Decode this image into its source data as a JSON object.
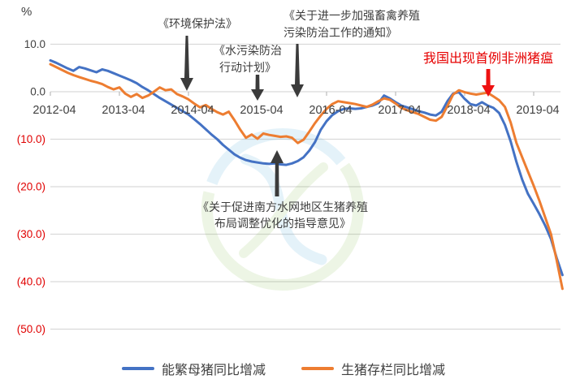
{
  "chart_data": {
    "type": "line",
    "title": "",
    "unit_label": "%",
    "grid": true,
    "legend_position": "bottom",
    "colors": {
      "grid": "#d9d9d9",
      "axis_text": "#404040",
      "negative_tick": "#e00000",
      "arrow": "#3b3b3b",
      "asf_arrow": "#ee1111"
    },
    "x_axis": {
      "tick_labels": [
        "2012-04",
        "2013-04",
        "2014-04",
        "2015-04",
        "2016-04",
        "2017-04",
        "2018-04",
        "2019-04"
      ]
    },
    "y_axis": {
      "range": [
        -50,
        10
      ],
      "ticks": [
        {
          "value": 10,
          "label": "10.0"
        },
        {
          "value": 0,
          "label": "0.0"
        },
        {
          "value": -10,
          "label": "(10.0)"
        },
        {
          "value": -20,
          "label": "(20.0)"
        },
        {
          "value": -30,
          "label": "(30.0)"
        },
        {
          "value": -40,
          "label": "(40.0)"
        },
        {
          "value": -50,
          "label": "(50.0)"
        }
      ]
    },
    "x": [
      "2012-04",
      "2012-05",
      "2012-06",
      "2012-07",
      "2012-08",
      "2012-09",
      "2012-10",
      "2012-11",
      "2012-12",
      "2013-01",
      "2013-02",
      "2013-03",
      "2013-04",
      "2013-05",
      "2013-06",
      "2013-07",
      "2013-08",
      "2013-09",
      "2013-10",
      "2013-11",
      "2013-12",
      "2014-01",
      "2014-02",
      "2014-03",
      "2014-04",
      "2014-05",
      "2014-06",
      "2014-07",
      "2014-08",
      "2014-09",
      "2014-10",
      "2014-11",
      "2014-12",
      "2015-01",
      "2015-02",
      "2015-03",
      "2015-04",
      "2015-05",
      "2015-06",
      "2015-07",
      "2015-08",
      "2015-09",
      "2015-10",
      "2015-11",
      "2015-12",
      "2016-01",
      "2016-02",
      "2016-03",
      "2016-04",
      "2016-05",
      "2016-06",
      "2016-07",
      "2016-08",
      "2016-09",
      "2016-10",
      "2016-11",
      "2016-12",
      "2017-01",
      "2017-02",
      "2017-03",
      "2017-04",
      "2017-05",
      "2017-06",
      "2017-07",
      "2017-08",
      "2017-09",
      "2017-10",
      "2017-11",
      "2017-12",
      "2018-01",
      "2018-02",
      "2018-03",
      "2018-04",
      "2018-05",
      "2018-06",
      "2018-07",
      "2018-08",
      "2018-09",
      "2018-10",
      "2018-11",
      "2018-12",
      "2019-01",
      "2019-02",
      "2019-03",
      "2019-04",
      "2019-05",
      "2019-06",
      "2019-07",
      "2019-08",
      "2019-09"
    ],
    "series": [
      {
        "name": "能繁母猪同比增减",
        "color": "#4472c4",
        "values": [
          6.6,
          6.1,
          5.5,
          4.9,
          4.4,
          5.2,
          4.9,
          4.5,
          4.1,
          4.7,
          4.4,
          3.9,
          3.4,
          2.9,
          2.4,
          1.8,
          1.0,
          0.3,
          -0.5,
          -1.3,
          -2.0,
          -2.7,
          -3.4,
          -4.1,
          -4.8,
          -5.8,
          -6.8,
          -7.9,
          -9.0,
          -10.0,
          -11.2,
          -12.2,
          -13.2,
          -13.9,
          -14.4,
          -14.7,
          -14.9,
          -15.1,
          -15.2,
          -15.1,
          -15.3,
          -15.4,
          -15.1,
          -14.6,
          -13.8,
          -12.4,
          -10.6,
          -8.0,
          -6.2,
          -4.9,
          -4.1,
          -3.6,
          -3.5,
          -3.6,
          -3.5,
          -3.2,
          -2.9,
          -2.4,
          -0.8,
          -1.4,
          -2.2,
          -2.9,
          -3.3,
          -3.7,
          -4.1,
          -4.4,
          -4.8,
          -5.0,
          -4.2,
          -2.0,
          -0.4,
          -0.1,
          -1.5,
          -2.6,
          -2.9,
          -2.2,
          -2.9,
          -3.4,
          -4.5,
          -7.0,
          -10.5,
          -14.8,
          -18.5,
          -21.5,
          -23.6,
          -25.8,
          -28.2,
          -31.0,
          -35.0,
          -38.6
        ]
      },
      {
        "name": "生猪存栏同比增减",
        "color": "#ed7d31",
        "values": [
          5.8,
          5.2,
          4.6,
          4.0,
          3.5,
          3.1,
          2.7,
          2.3,
          2.0,
          1.6,
          1.0,
          0.5,
          0.9,
          -0.4,
          -1.1,
          -0.5,
          -1.3,
          -0.8,
          0.0,
          0.9,
          0.3,
          0.5,
          -0.5,
          -1.0,
          -1.6,
          -2.5,
          -3.3,
          -2.8,
          -3.6,
          -4.3,
          -4.8,
          -4.2,
          -6.0,
          -8.0,
          -9.7,
          -9.0,
          -9.9,
          -8.8,
          -9.1,
          -9.3,
          -9.5,
          -9.4,
          -9.7,
          -10.8,
          -10.1,
          -8.4,
          -6.6,
          -5.0,
          -3.6,
          -2.6,
          -2.0,
          -2.2,
          -2.4,
          -2.6,
          -2.9,
          -3.2,
          -2.7,
          -2.0,
          -1.4,
          -1.7,
          -2.5,
          -3.4,
          -3.9,
          -4.3,
          -4.7,
          -5.3,
          -5.9,
          -6.1,
          -5.3,
          -3.0,
          -0.6,
          0.3,
          -0.1,
          -0.4,
          -0.6,
          -0.4,
          -0.2,
          -1.0,
          -1.8,
          -3.2,
          -6.5,
          -10.8,
          -13.8,
          -16.8,
          -19.8,
          -23.0,
          -26.5,
          -30.0,
          -35.5,
          -41.5
        ]
      }
    ]
  },
  "annotations": {
    "env_law": {
      "lines": [
        "《环境保护法》"
      ]
    },
    "water_plan": {
      "lines": [
        "《水污染防治",
        "行动计划》"
      ]
    },
    "notice": {
      "lines": [
        "《关于进一步加强畜禽养殖",
        "污染防治工作的通知》"
      ]
    },
    "south_guidance": {
      "lines": [
        "《关于促进南方水网地区生猪养殖",
        "布局调整优化的指导意见》"
      ]
    },
    "asf": {
      "text": "我国出现首例非洲猪瘟",
      "color": "#e60000"
    }
  },
  "legend": {
    "items": [
      {
        "label": "能繁母猪同比增减"
      },
      {
        "label": "生猪存栏同比增减"
      }
    ]
  }
}
